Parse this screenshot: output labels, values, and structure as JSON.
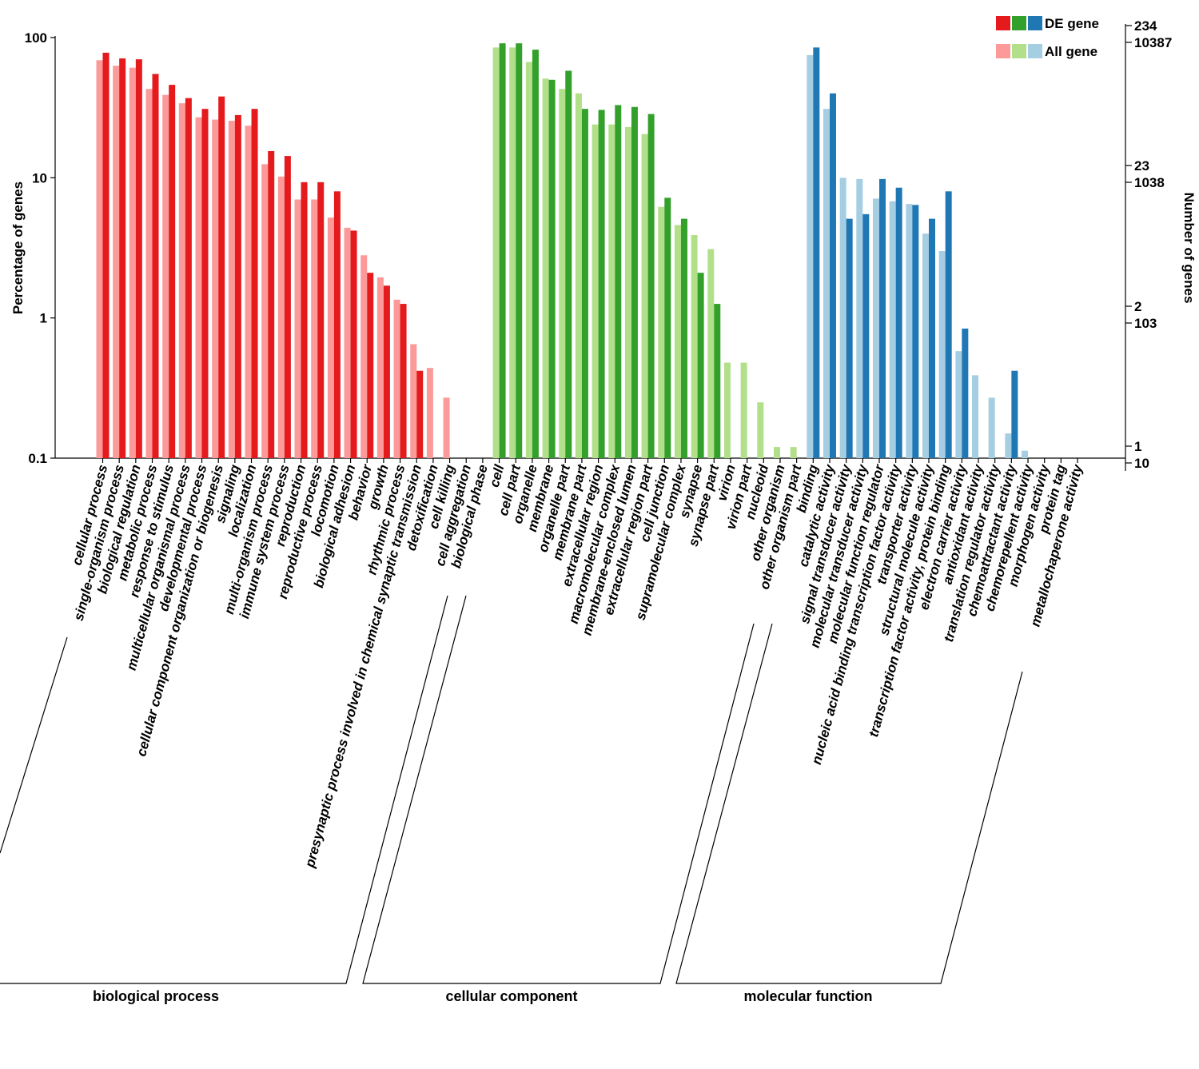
{
  "chart_data": {
    "type": "bar",
    "title": "",
    "ylabel": "Percentage of genes",
    "ylabel_right": "Number of genes",
    "y_scale": "log",
    "ylim": [
      0.1,
      100
    ],
    "y_ticks": [
      "100",
      "10",
      "1",
      "0.1"
    ],
    "right_ticks": [
      {
        "de": "234",
        "all": "10387"
      },
      {
        "de": "23",
        "all": "1038"
      },
      {
        "de": "2",
        "all": "103"
      },
      {
        "de": "1",
        "all": "10"
      }
    ],
    "legend": {
      "position": "top-right",
      "de_label": "DE gene",
      "all_label": "All gene"
    },
    "groups": [
      {
        "name": "biological process",
        "de_color": "#e41a1c",
        "all_color": "#fb9a99",
        "categories": [
          {
            "label": "cellular process",
            "all": 69,
            "de": 78
          },
          {
            "label": "single-organism process",
            "all": 63,
            "de": 71
          },
          {
            "label": "biological regulation",
            "all": 61,
            "de": 70
          },
          {
            "label": "metabolic process",
            "all": 43,
            "de": 55
          },
          {
            "label": "response to stimulus",
            "all": 39,
            "de": 46
          },
          {
            "label": "multicellular organismal process",
            "all": 34,
            "de": 37
          },
          {
            "label": "developmental process",
            "all": 27,
            "de": 31
          },
          {
            "label": "cellular component organization or biogenesis",
            "all": 26,
            "de": 38
          },
          {
            "label": "signaling",
            "all": 25.5,
            "de": 28
          },
          {
            "label": "localization",
            "all": 23.5,
            "de": 31
          },
          {
            "label": "multi-organism process",
            "all": 12.5,
            "de": 15.5
          },
          {
            "label": "immune system process",
            "all": 10.2,
            "de": 14.3
          },
          {
            "label": "reproduction",
            "all": 7,
            "de": 9.3
          },
          {
            "label": "reproductive process",
            "all": 7,
            "de": 9.3
          },
          {
            "label": "locomotion",
            "all": 5.2,
            "de": 8
          },
          {
            "label": "biological adhesion",
            "all": 4.4,
            "de": 4.2
          },
          {
            "label": "behavior",
            "all": 2.8,
            "de": 2.1
          },
          {
            "label": "growth",
            "all": 1.95,
            "de": 1.7
          },
          {
            "label": "rhythmic process",
            "all": 1.35,
            "de": 1.26
          },
          {
            "label": "presynaptic process involved in chemical synaptic transmission",
            "all": 0.65,
            "de": 0.42
          },
          {
            "label": "detoxification",
            "all": 0.44,
            "de": null
          },
          {
            "label": "cell killing",
            "all": 0.27,
            "de": null
          },
          {
            "label": "cell aggregation",
            "all": null,
            "de": null
          },
          {
            "label": "biological phase",
            "all": null,
            "de": null
          }
        ]
      },
      {
        "name": "cellular component",
        "de_color": "#33a02c",
        "all_color": "#b2df8a",
        "categories": [
          {
            "label": "cell",
            "all": 85,
            "de": 91
          },
          {
            "label": "cell part",
            "all": 85,
            "de": 91
          },
          {
            "label": "organelle",
            "all": 67,
            "de": 82
          },
          {
            "label": "membrane",
            "all": 51,
            "de": 50
          },
          {
            "label": "organelle part",
            "all": 43,
            "de": 58
          },
          {
            "label": "membrane part",
            "all": 40,
            "de": 31
          },
          {
            "label": "extracellular region",
            "all": 24,
            "de": 30.5
          },
          {
            "label": "macromolecular complex",
            "all": 24,
            "de": 33
          },
          {
            "label": "membrane-enclosed lumen",
            "all": 23,
            "de": 32
          },
          {
            "label": "extracellular region part",
            "all": 20.5,
            "de": 28.5
          },
          {
            "label": "cell junction",
            "all": 6.2,
            "de": 7.2
          },
          {
            "label": "supramolecular complex",
            "all": 4.6,
            "de": 5.1
          },
          {
            "label": "synapse",
            "all": 3.9,
            "de": 2.1
          },
          {
            "label": "synapse part",
            "all": 3.1,
            "de": 1.26
          },
          {
            "label": "virion",
            "all": 0.48,
            "de": null
          },
          {
            "label": "virion part",
            "all": 0.48,
            "de": null
          },
          {
            "label": "nucleoid",
            "all": 0.25,
            "de": null
          },
          {
            "label": "other organism",
            "all": 0.12,
            "de": null
          },
          {
            "label": "other organism part",
            "all": 0.12,
            "de": null
          }
        ]
      },
      {
        "name": "molecular function",
        "de_color": "#1f78b4",
        "all_color": "#a6cee3",
        "categories": [
          {
            "label": "binding",
            "all": 75,
            "de": 85
          },
          {
            "label": "catalytic activity",
            "all": 31,
            "de": 40
          },
          {
            "label": "signal transducer activity",
            "all": 10,
            "de": 5.1
          },
          {
            "label": "molecular transducer activity",
            "all": 9.8,
            "de": 5.5
          },
          {
            "label": "molecular function regulator",
            "all": 7.1,
            "de": 9.8
          },
          {
            "label": "nucleic acid binding transcription factor activity",
            "all": 6.8,
            "de": 8.5
          },
          {
            "label": "transporter activity",
            "all": 6.5,
            "de": 6.4
          },
          {
            "label": "structural molecule activity",
            "all": 4,
            "de": 5.1
          },
          {
            "label": "transcription factor activity, protein binding",
            "all": 3,
            "de": 8
          },
          {
            "label": "electron carrier activity",
            "all": 0.58,
            "de": 0.84
          },
          {
            "label": "antioxidant activity",
            "all": 0.39,
            "de": null
          },
          {
            "label": "translation regulator activity",
            "all": 0.27,
            "de": null
          },
          {
            "label": "chemoattractant activity",
            "all": 0.15,
            "de": 0.42
          },
          {
            "label": "chemorepellent activity",
            "all": 0.113,
            "de": null
          },
          {
            "label": "morphogen activity",
            "all": null,
            "de": null
          },
          {
            "label": "protein tag",
            "all": null,
            "de": null
          },
          {
            "label": "metallochaperone activity",
            "all": null,
            "de": null
          }
        ]
      }
    ]
  }
}
